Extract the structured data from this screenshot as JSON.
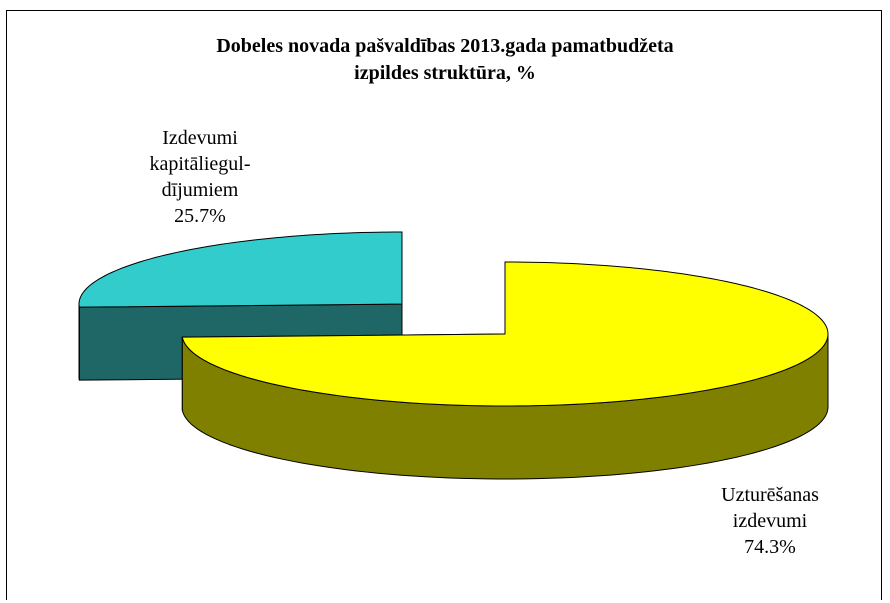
{
  "chart_data": {
    "type": "pie",
    "title_lines": [
      "Dobeles novada pašvaldības 2013.gada pamatbudžeta",
      "izpildes struktūra, %"
    ],
    "slices": [
      {
        "label_lines": [
          "Uzturēšanas",
          "izdevumi"
        ],
        "value": 74.3,
        "value_label": "74.3%",
        "top_color": "#ffff00",
        "side_color": "#808000"
      },
      {
        "label_lines": [
          "Izdevumi",
          "kapitāliegul-",
          "dījumiem"
        ],
        "value": 25.7,
        "value_label": "25.7%",
        "top_color": "#33cccc",
        "side_color": "#1f6666"
      }
    ],
    "three_d": true,
    "exploded": true
  }
}
